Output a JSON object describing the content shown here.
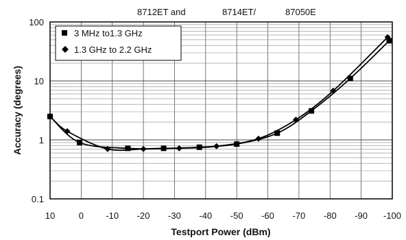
{
  "header": {
    "segments": [
      "8712ET and",
      "8714ET/",
      "87050E"
    ]
  },
  "chart_data": {
    "type": "line",
    "xlabel": "Testport Power (dBm)",
    "ylabel": "Accuracy (degrees)",
    "xlim": [
      10,
      -100
    ],
    "ylim": [
      0.1,
      100
    ],
    "y_scale": "log",
    "grid": true,
    "legend_position": "top-left",
    "x_ticks": [
      10,
      0,
      -10,
      -20,
      -30,
      -40,
      -50,
      -60,
      -70,
      -80,
      -90,
      -100
    ],
    "x_tick_labels": [
      "10",
      "0",
      "-10",
      "-20",
      "-30",
      "-40",
      "-50",
      "-60",
      "-70",
      "-80",
      "-90",
      "-100"
    ],
    "y_ticks": [
      0.1,
      1,
      10,
      100
    ],
    "y_tick_labels": [
      "0.1",
      "1",
      "10",
      "100"
    ],
    "series": [
      {
        "name": "3 MHz to1.3 GHz",
        "marker": "square",
        "color": "#000000",
        "x": [
          10,
          0.5,
          -15,
          -26.5,
          -38,
          -50,
          -63,
          -74,
          -86.5,
          -99
        ],
        "y": [
          2.5,
          0.9,
          0.72,
          0.72,
          0.75,
          0.85,
          1.3,
          3.1,
          11,
          48
        ]
      },
      {
        "name": "1.3 GHz to 2.2 GHz",
        "marker": "diamond",
        "color": "#000000",
        "x": [
          10,
          4.5,
          -8.5,
          -20,
          -31.5,
          -43.5,
          -57,
          -69,
          -81,
          -98.5
        ],
        "y": [
          2.5,
          1.4,
          0.7,
          0.7,
          0.72,
          0.78,
          1.05,
          2.2,
          6.8,
          55
        ]
      }
    ]
  }
}
